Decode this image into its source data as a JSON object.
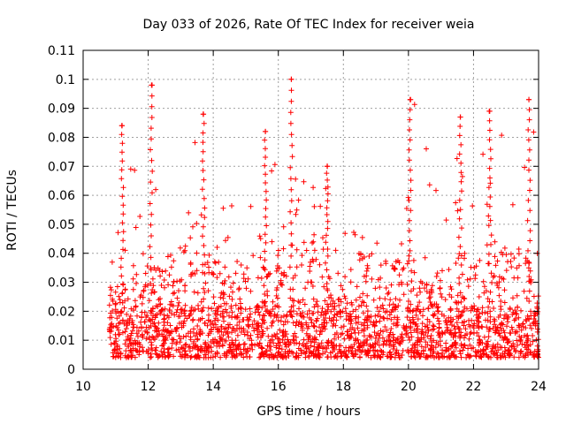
{
  "chart_data": {
    "type": "scatter",
    "title": "Day 033 of 2026, Rate Of TEC Index for receiver weia",
    "xlabel": "GPS time / hours",
    "ylabel": "ROTI / TECUs",
    "xlim": [
      10,
      24
    ],
    "ylim": [
      0,
      0.11
    ],
    "xticks": [
      10,
      12,
      14,
      16,
      18,
      20,
      22,
      24
    ],
    "xtick_labels": [
      "10",
      "12",
      "14",
      "16",
      "18",
      "20",
      "22",
      "24"
    ],
    "yticks": [
      0,
      0.01,
      0.02,
      0.03,
      0.04,
      0.05,
      0.06,
      0.07,
      0.08,
      0.09,
      0.1,
      0.11
    ],
    "ytick_labels": [
      "0",
      "0.01",
      "0.02",
      "0.03",
      "0.04",
      "0.05",
      "0.06",
      "0.07",
      "0.08",
      "0.09",
      "0.1",
      "0.11"
    ],
    "grid": true,
    "marker": "+",
    "marker_color": "#ff0000",
    "data_time_range_hours": [
      10.8,
      24.0
    ],
    "activity_profile": [
      {
        "t_start": 10.8,
        "t_end": 11.5,
        "baseline_max": 0.03,
        "spike_max": 0.084
      },
      {
        "t_start": 11.5,
        "t_end": 12.6,
        "baseline_max": 0.035,
        "spike_max": 0.098
      },
      {
        "t_start": 12.6,
        "t_end": 13.4,
        "baseline_max": 0.04,
        "spike_max": 0.057
      },
      {
        "t_start": 13.4,
        "t_end": 14.2,
        "baseline_max": 0.042,
        "spike_max": 0.088
      },
      {
        "t_start": 14.2,
        "t_end": 15.2,
        "baseline_max": 0.035,
        "spike_max": 0.06
      },
      {
        "t_start": 15.2,
        "t_end": 16.0,
        "baseline_max": 0.04,
        "spike_max": 0.082
      },
      {
        "t_start": 16.0,
        "t_end": 16.6,
        "baseline_max": 0.045,
        "spike_max": 0.1
      },
      {
        "t_start": 16.6,
        "t_end": 17.6,
        "baseline_max": 0.048,
        "spike_max": 0.07
      },
      {
        "t_start": 17.6,
        "t_end": 18.4,
        "baseline_max": 0.025,
        "spike_max": 0.067
      },
      {
        "t_start": 18.4,
        "t_end": 19.8,
        "baseline_max": 0.04,
        "spike_max": 0.053
      },
      {
        "t_start": 19.8,
        "t_end": 20.6,
        "baseline_max": 0.04,
        "spike_max": 0.093
      },
      {
        "t_start": 20.6,
        "t_end": 21.4,
        "baseline_max": 0.035,
        "spike_max": 0.066
      },
      {
        "t_start": 21.4,
        "t_end": 22.2,
        "baseline_max": 0.04,
        "spike_max": 0.087
      },
      {
        "t_start": 22.2,
        "t_end": 23.0,
        "baseline_max": 0.042,
        "spike_max": 0.089
      },
      {
        "t_start": 23.0,
        "t_end": 24.0,
        "baseline_max": 0.04,
        "spike_max": 0.093
      }
    ],
    "notable_peaks": [
      {
        "x": 11.2,
        "y": 0.084
      },
      {
        "x": 12.1,
        "y": 0.098
      },
      {
        "x": 13.7,
        "y": 0.088
      },
      {
        "x": 15.6,
        "y": 0.082
      },
      {
        "x": 16.4,
        "y": 0.1
      },
      {
        "x": 17.5,
        "y": 0.07
      },
      {
        "x": 20.05,
        "y": 0.093
      },
      {
        "x": 21.6,
        "y": 0.087
      },
      {
        "x": 22.5,
        "y": 0.089
      },
      {
        "x": 23.7,
        "y": 0.093
      }
    ]
  }
}
